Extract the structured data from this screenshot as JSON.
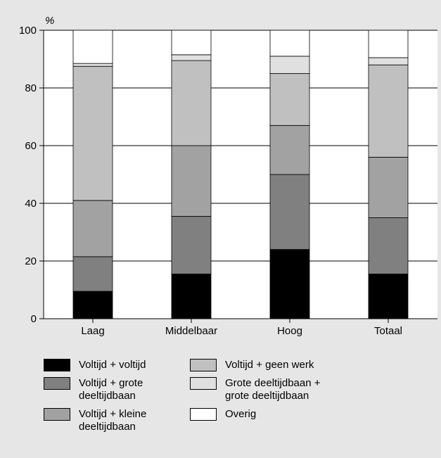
{
  "chart_data": {
    "type": "bar",
    "stacked": true,
    "ylabel": "%",
    "ylim": [
      0,
      100
    ],
    "yticks": [
      0,
      20,
      40,
      60,
      80,
      100
    ],
    "grid": true,
    "legend_position": "bottom",
    "categories": [
      "Laag",
      "Middelbaar",
      "Hoog",
      "Totaal"
    ],
    "series": [
      {
        "name": "Voltijd + voltijd",
        "color": "#000000",
        "values": [
          9.5,
          15.5,
          24,
          15.5
        ]
      },
      {
        "name": "Voltijd + grote\ndeeltijdbaan",
        "color": "#808080",
        "values": [
          12,
          20,
          26,
          19.5
        ]
      },
      {
        "name": "Voltijd + kleine\ndeeltijdbaan",
        "color": "#a2a2a2",
        "values": [
          19.5,
          24.5,
          17,
          21
        ]
      },
      {
        "name": "Voltijd + geen werk",
        "color": "#c0c0c0",
        "values": [
          46.5,
          29.5,
          18,
          32
        ]
      },
      {
        "name": "Grote deeltijdbaan +\ngrote deeltijdbaan",
        "color": "#e0e0e0",
        "values": [
          1,
          2,
          6,
          2.5
        ]
      },
      {
        "name": "Overig",
        "color": "#ffffff",
        "values": [
          11.5,
          8.5,
          9,
          9.5
        ]
      }
    ],
    "legend_order": [
      0,
      3,
      1,
      4,
      2,
      5
    ]
  }
}
